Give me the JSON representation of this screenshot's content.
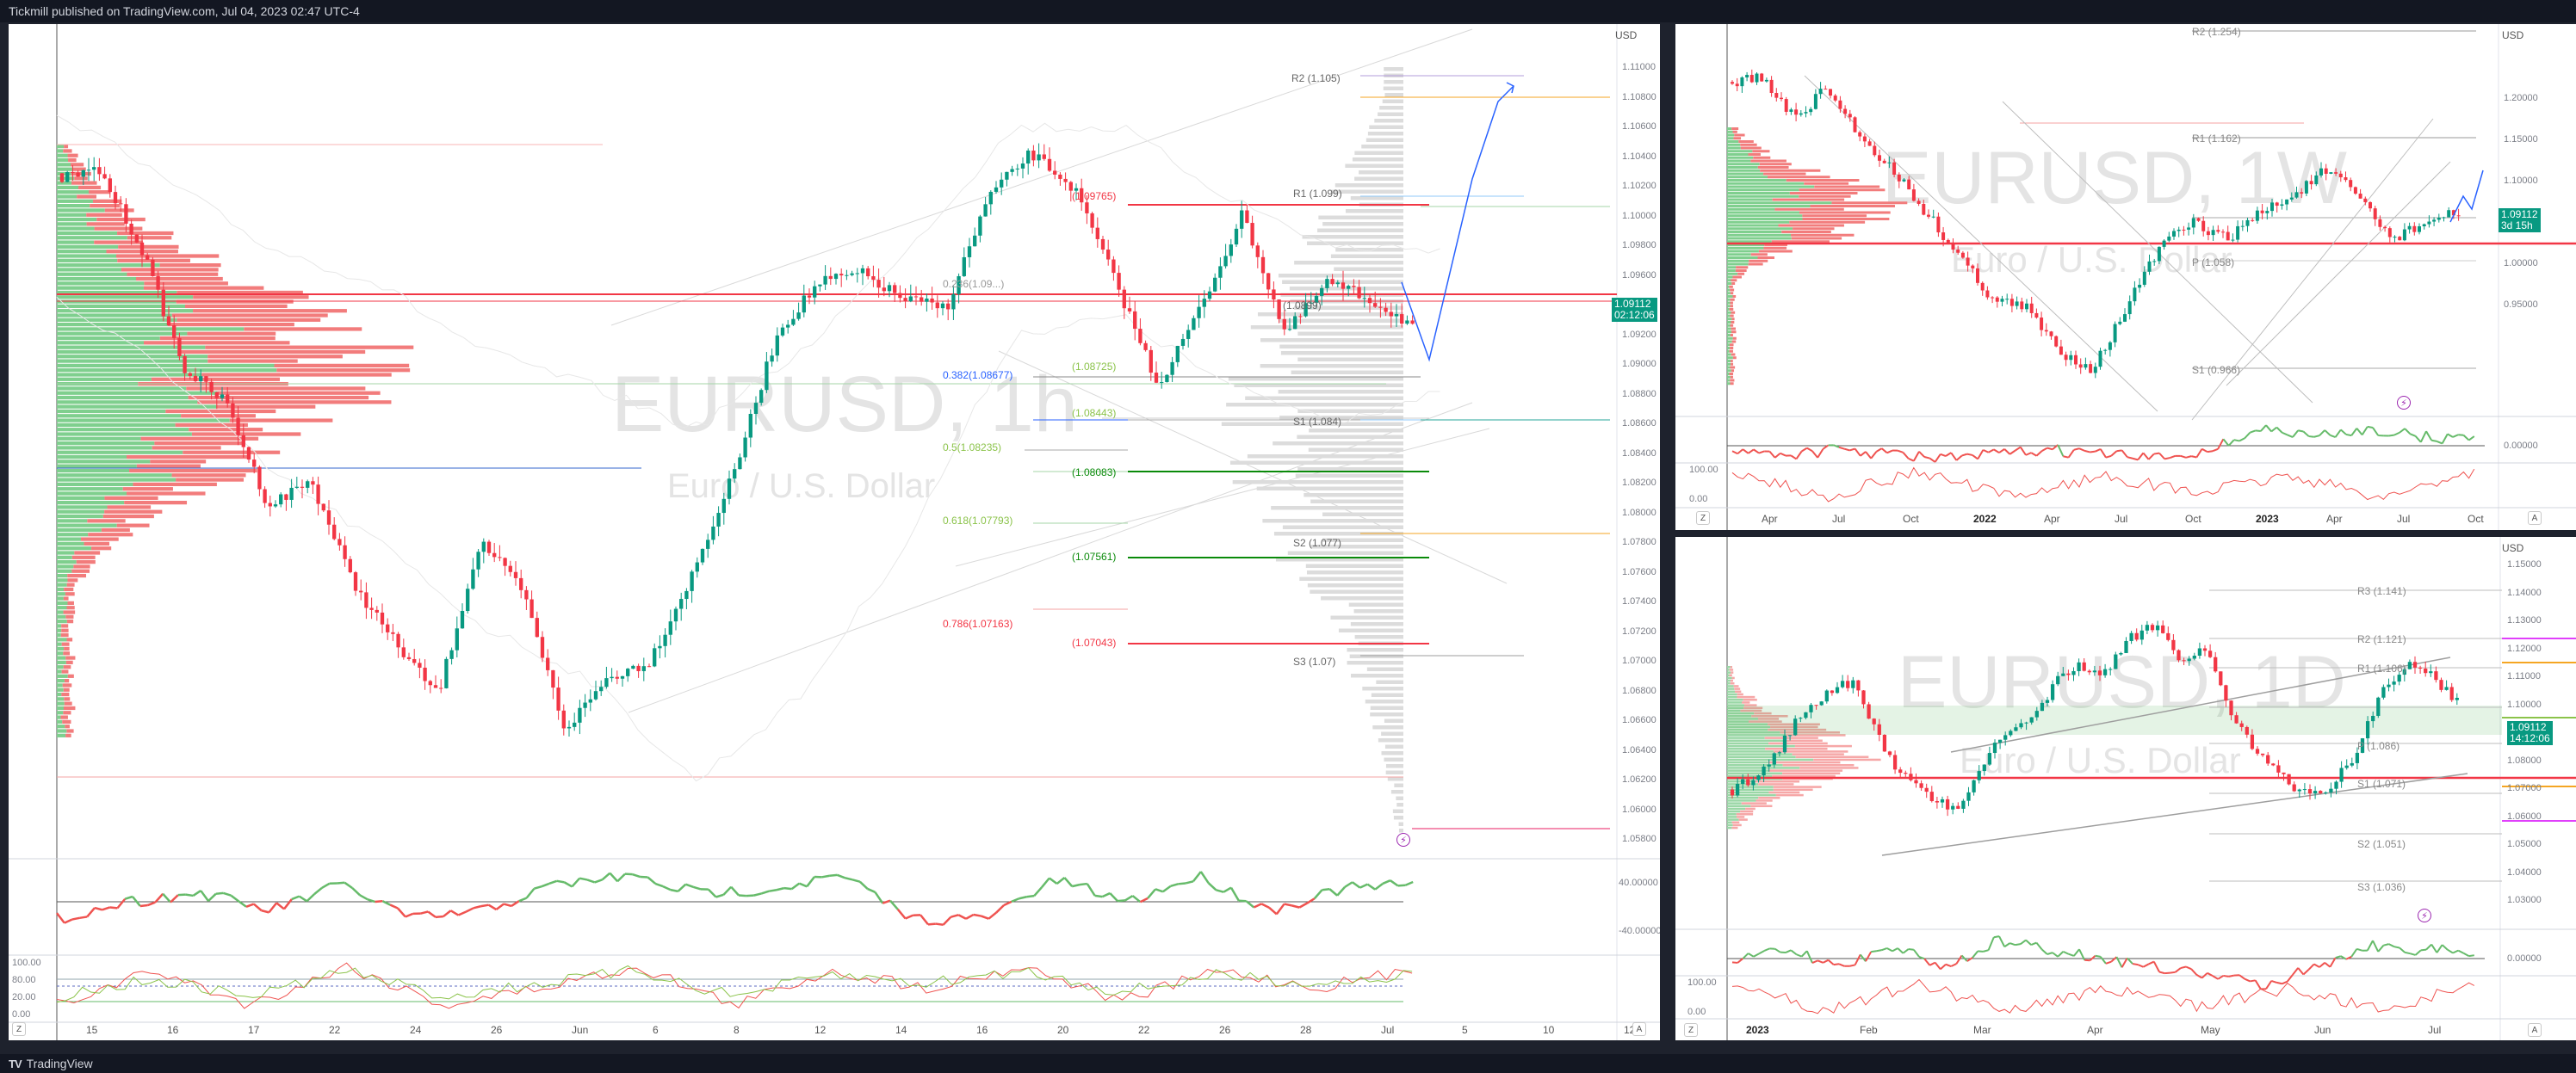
{
  "header": {
    "publisher": "Tickmill published on TradingView.com, Jul 04, 2023 02:47 UTC-4"
  },
  "footer": {
    "logo": "TV",
    "brand": "TradingView"
  },
  "colors": {
    "up": "#089981",
    "down": "#f23645",
    "bg": "#ffffff",
    "frame": "#1e222d"
  },
  "charts": {
    "h1": {
      "symbol": "EURUSD, 1h",
      "description": "Euro / U.S. Dollar",
      "currency": "USD",
      "price": "1.09112",
      "countdown": "02:12:06",
      "y_ticks": [
        "1.11000",
        "1.10800",
        "1.10600",
        "1.10400",
        "1.10200",
        "1.10000",
        "1.09800",
        "1.09600",
        "1.09400",
        "1.09200",
        "1.09000",
        "1.08800",
        "1.08600",
        "1.08400",
        "1.08200",
        "1.08000",
        "1.07800",
        "1.07600",
        "1.07400",
        "1.07200",
        "1.07000",
        "1.06800",
        "1.06600",
        "1.06400",
        "1.06200",
        "1.06000",
        "1.05800"
      ],
      "x_ticks": [
        "15",
        "16",
        "17",
        "22",
        "24",
        "26",
        "Jun",
        "6",
        "8",
        "12",
        "14",
        "16",
        "20",
        "22",
        "26",
        "28",
        "Jul",
        "5",
        "10",
        "12"
      ],
      "osc1_ticks": [
        "40.00000",
        "-40.00000"
      ],
      "osc2_ticks": [
        "100.00",
        "80.00",
        "20.00",
        "0.00"
      ],
      "fib": [
        "0.236(1.09...)",
        "0.382(1.08677)",
        "0.5(1.08235)",
        "0.618(1.07793)",
        "0.786(1.07163)"
      ],
      "levels": [
        "(1.09765)",
        "(1.08443)",
        "(1.08083)",
        "(1.07561)",
        "(1.07043)",
        "(1.08725)",
        "(1.0899)"
      ],
      "pivots": [
        "R2 (1.105)",
        "R1 (1.099)",
        "S1 (1.084)",
        "S2 (1.077)",
        "S3 (1.07)"
      ],
      "buttons": {
        "zoom": "Z",
        "auto": "A"
      }
    },
    "w1": {
      "symbol": "EURUSD, 1W",
      "description": "Euro / U.S. Dollar",
      "currency": "USD",
      "price": "1.09112",
      "countdown": "3d 15h",
      "y_ticks": [
        "1.20000",
        "1.15000",
        "1.10000",
        "1.05000",
        "1.00000",
        "0.95000"
      ],
      "osc1_ticks": [
        "0.00000"
      ],
      "osc2_ticks": [
        "100.00",
        "0.00"
      ],
      "x_ticks": [
        "Apr",
        "Jul",
        "Oct",
        "2022",
        "Apr",
        "Jul",
        "Oct",
        "2023",
        "Apr",
        "Jul",
        "Oct"
      ],
      "pivots": [
        "R2 (1.254)",
        "R1 (1.162)",
        "P (1.058)",
        "S1 (0.966)"
      ],
      "buttons": {
        "zoom": "Z",
        "auto": "A"
      }
    },
    "d1": {
      "symbol": "EURUSD, 1D",
      "description": "Euro / U.S. Dollar",
      "currency": "USD",
      "price": "1.09112",
      "countdown": "14:12:06",
      "y_ticks": [
        "1.15000",
        "1.14000",
        "1.13000",
        "1.12000",
        "1.11000",
        "1.10000",
        "1.09000",
        "1.08000",
        "1.07000",
        "1.06000",
        "1.05000",
        "1.04000",
        "1.03000"
      ],
      "osc1_ticks": [
        "0.00000"
      ],
      "osc2_ticks": [
        "100.00",
        "0.00"
      ],
      "x_ticks": [
        "2023",
        "Feb",
        "Mar",
        "Apr",
        "May",
        "Jun",
        "Jul"
      ],
      "pivots": [
        "R3 (1.141)",
        "R2 (1.121)",
        "R1 (1.106)",
        "P (1.086)",
        "S1 (1.071)",
        "S2 (1.051)",
        "S3 (1.036)"
      ],
      "buttons": {
        "zoom": "Z",
        "auto": "A"
      }
    }
  }
}
